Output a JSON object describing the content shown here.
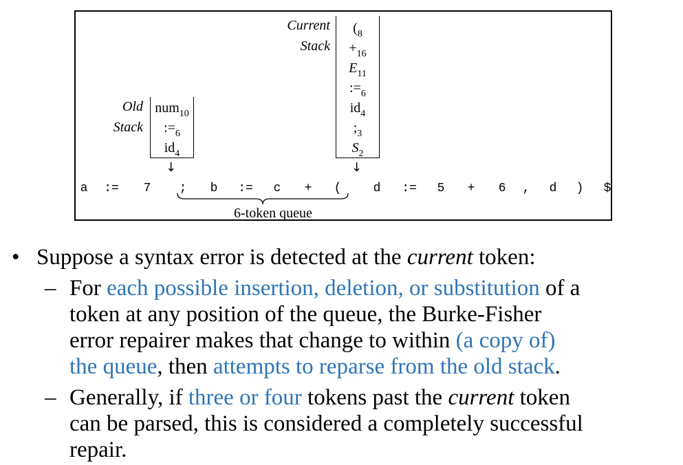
{
  "diagram": {
    "current_stack_label": [
      "Current",
      "Stack"
    ],
    "old_stack_label": [
      "Old",
      "Stack"
    ],
    "current_stack": [
      {
        "sym": "(",
        "sub": "8",
        "italic": false
      },
      {
        "sym": "+",
        "sub": "16",
        "italic": false
      },
      {
        "sym": "E",
        "sub": "11",
        "italic": true
      },
      {
        "sym": ":=",
        "sub": "6",
        "italic": false
      },
      {
        "sym": "id",
        "sub": "4",
        "italic": false
      },
      {
        "sym": ";",
        "sub": "3",
        "italic": false
      },
      {
        "sym": "S",
        "sub": "2",
        "italic": true
      }
    ],
    "old_stack": [
      {
        "sym": "num",
        "sub": "10",
        "italic": false
      },
      {
        "sym": ":=",
        "sub": "6",
        "italic": false
      },
      {
        "sym": "id",
        "sub": "4",
        "italic": false
      }
    ],
    "arrow_glyph": "↓",
    "tokens": [
      "a",
      ":=",
      "7",
      ";",
      "b",
      ":=",
      "c",
      "+",
      "(",
      "d",
      ":=",
      "5",
      "+",
      "6",
      ",",
      "d",
      ")",
      "$"
    ],
    "queue_label": "6-token queue"
  },
  "bullets": {
    "main": {
      "marker": "•",
      "text1": "Suppose a syntax error is detected at the ",
      "text2": "current",
      "text3": " token:"
    },
    "sub1": {
      "marker": "–",
      "l1a": "For ",
      "l1b": "each possible insertion, deletion, or substitution",
      "l1c": " of a",
      "l2": "token at any position of the queue, the Burke-Fisher",
      "l3a": "error repairer makes that change to within ",
      "l3b": "(a copy of)",
      "l4a": "the queue",
      "l4b": ", then ",
      "l4c": "attempts to reparse from the old stack",
      "l4d": "."
    },
    "sub2": {
      "marker": "–",
      "l1a": "Generally, if ",
      "l1b": "three or four",
      "l1c": " tokens past the ",
      "l1d": "current",
      "l1e": " token",
      "l2": "can be parsed, this is considered a completely successful",
      "l3": "repair."
    }
  }
}
